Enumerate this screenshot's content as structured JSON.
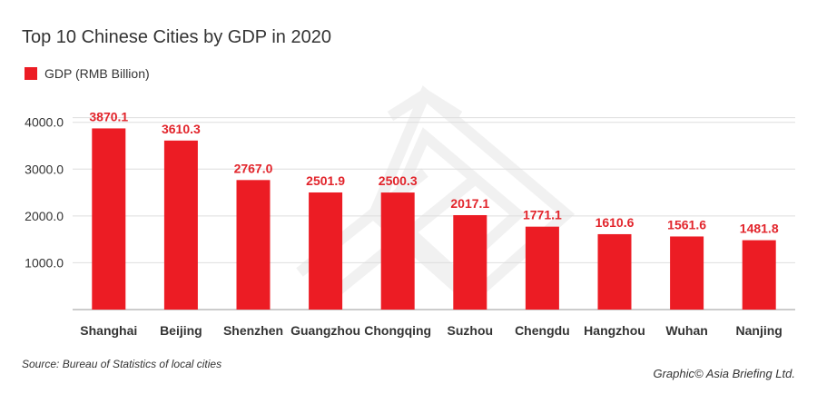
{
  "chart_data": {
    "type": "bar",
    "title": "Top 10 Chinese Cities by GDP in 2020",
    "categories": [
      "Shanghai",
      "Beijing",
      "Shenzhen",
      "Guangzhou",
      "Chongqing",
      "Suzhou",
      "Chengdu",
      "Hangzhou",
      "Wuhan",
      "Nanjing"
    ],
    "series": [
      {
        "name": "GDP (RMB Billion)",
        "values": [
          3870.1,
          3610.3,
          2767.0,
          2501.9,
          2500.3,
          2017.1,
          1771.1,
          1610.6,
          1561.6,
          1481.8
        ],
        "data_labels": [
          "3870.1",
          "3610.3",
          "2767.0",
          "2501.9",
          "2500.3",
          "2017.1",
          "1771.1",
          "1610.6",
          "1561.6",
          "1481.8"
        ],
        "color": "#ec1c24"
      }
    ],
    "yticks": [
      1000,
      2000,
      3000,
      4000
    ],
    "ytick_labels": [
      "1000.0",
      "2000.0",
      "3000.0",
      "4000.0"
    ],
    "ylim": [
      0,
      4150
    ],
    "xlabel": "",
    "ylabel": "",
    "grid": true,
    "legend_position": "top-left"
  },
  "footer": {
    "source": "Source: Bureau of Statistics of local cities",
    "credit": "Graphic© Asia Briefing Ltd."
  },
  "colors": {
    "bar": "#ec1c24",
    "data_label": "#e2242b",
    "watermark": "#f2f2f2"
  },
  "watermark_icon": "asia-briefing-logo-icon"
}
